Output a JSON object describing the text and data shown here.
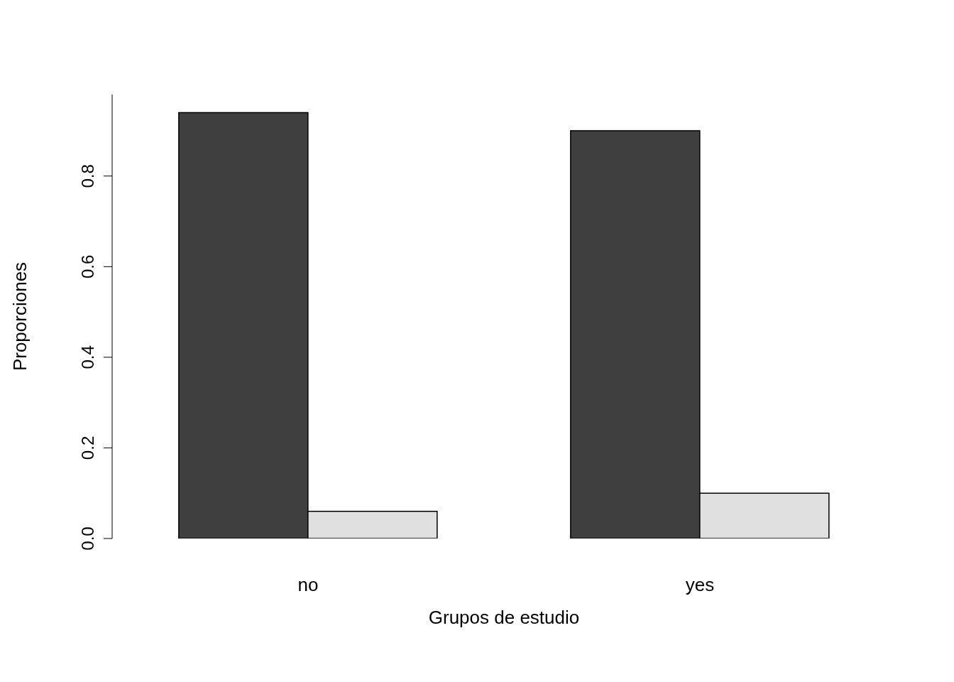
{
  "chart_data": {
    "type": "bar",
    "xlabel": "Grupos de estudio",
    "ylabel": "Proporciones",
    "categories": [
      "no",
      "yes"
    ],
    "series": [
      {
        "color": "#3f3f3f",
        "values": [
          0.94,
          0.9
        ]
      },
      {
        "color": "#e0e0e0",
        "values": [
          0.06,
          0.1
        ]
      }
    ],
    "ylim": [
      0,
      0.98
    ],
    "yticks": [
      {
        "value": 0,
        "label": "0.0"
      },
      {
        "value": 0.2,
        "label": "0.2"
      },
      {
        "value": 0.4,
        "label": "0.4"
      },
      {
        "value": 0.6,
        "label": "0.6"
      },
      {
        "value": 0.8,
        "label": "0.8"
      }
    ],
    "grid": false,
    "legend": false
  }
}
